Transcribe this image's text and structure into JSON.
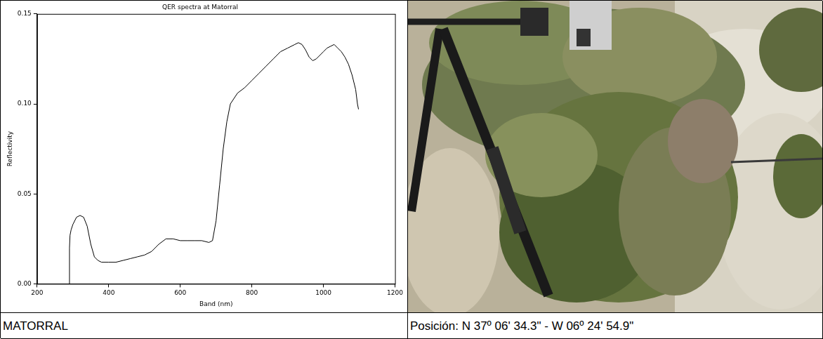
{
  "chart_data": {
    "type": "line",
    "title": "QER spectra at Matorral",
    "x_label": "Band (nm)",
    "y_label": "Reflectivity",
    "x": [
      290,
      290.5,
      292,
      295,
      300,
      310,
      320,
      330,
      340,
      350,
      360,
      370,
      380,
      400,
      420,
      440,
      460,
      480,
      500,
      520,
      540,
      560,
      580,
      600,
      620,
      640,
      660,
      680,
      690,
      700,
      710,
      720,
      730,
      740,
      760,
      780,
      800,
      820,
      840,
      860,
      880,
      900,
      920,
      930,
      940,
      950,
      960,
      970,
      980,
      1000,
      1010,
      1020,
      1030,
      1040,
      1050,
      1060,
      1070,
      1080,
      1090,
      1095,
      1098
    ],
    "values": [
      0.0,
      0.02,
      0.027,
      0.03,
      0.033,
      0.037,
      0.038,
      0.037,
      0.032,
      0.022,
      0.015,
      0.013,
      0.012,
      0.012,
      0.012,
      0.013,
      0.014,
      0.015,
      0.016,
      0.018,
      0.022,
      0.025,
      0.025,
      0.024,
      0.024,
      0.024,
      0.024,
      0.023,
      0.024,
      0.035,
      0.055,
      0.075,
      0.09,
      0.1,
      0.106,
      0.109,
      0.113,
      0.117,
      0.121,
      0.125,
      0.129,
      0.131,
      0.133,
      0.134,
      0.133,
      0.13,
      0.126,
      0.124,
      0.125,
      0.129,
      0.131,
      0.132,
      0.133,
      0.131,
      0.129,
      0.126,
      0.122,
      0.116,
      0.108,
      0.1,
      0.097
    ],
    "color": "#000000",
    "xlim": [
      200,
      1200
    ],
    "xticks": [
      200,
      400,
      600,
      800,
      1000,
      1200
    ],
    "ylim": [
      0,
      0.15
    ],
    "yticks": [
      {
        "value": 0,
        "label": "0.00"
      },
      {
        "value": 0.05,
        "label": "0.05"
      },
      {
        "value": 0.1,
        "label": "0.10"
      },
      {
        "value": 0.15,
        "label": "0.15"
      }
    ],
    "grid": false
  },
  "captions": [
    "MATORRAL",
    "Posición:  N 37º 06' 34.3\" - W 06º 24' 54.9\""
  ]
}
